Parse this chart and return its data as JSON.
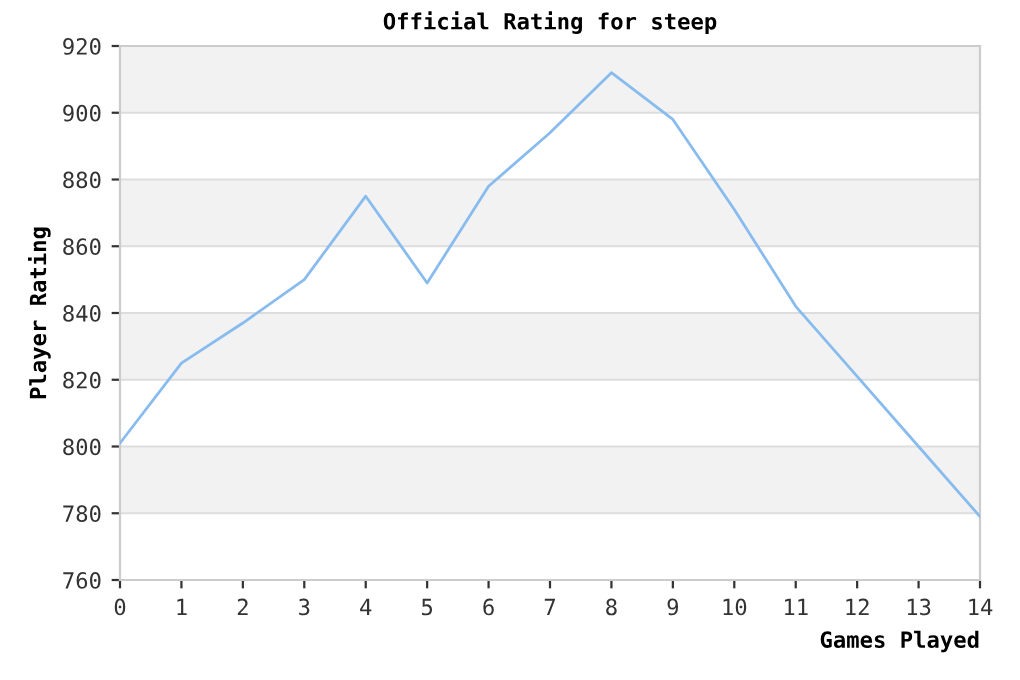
{
  "chart_data": {
    "type": "line",
    "title": "Official Rating for steep",
    "xlabel": "Games Played",
    "ylabel": "Player Rating",
    "x": [
      0,
      1,
      2,
      3,
      4,
      5,
      6,
      7,
      8,
      9,
      10,
      11,
      12,
      13,
      14
    ],
    "series": [
      {
        "color": "#88bbee",
        "values": [
          801,
          825,
          837,
          850,
          875,
          849,
          878,
          894,
          912,
          898,
          871,
          842,
          821,
          800,
          779
        ]
      }
    ],
    "xlim": [
      0,
      14
    ],
    "xticks": [
      0,
      1,
      2,
      3,
      4,
      5,
      6,
      7,
      8,
      9,
      10,
      11,
      12,
      13,
      14
    ],
    "ylim": [
      760,
      920
    ],
    "yticks": [
      760,
      780,
      800,
      820,
      840,
      860,
      880,
      900,
      920
    ],
    "grid": "y",
    "bands": [
      {
        "axis": "y",
        "from": 900,
        "to": 920,
        "color": "#f2f2f2"
      },
      {
        "axis": "y",
        "from": 860,
        "to": 880,
        "color": "#f2f2f2"
      },
      {
        "axis": "y",
        "from": 820,
        "to": 840,
        "color": "#f2f2f2"
      },
      {
        "axis": "y",
        "from": 780,
        "to": 800,
        "color": "#f2f2f2"
      }
    ]
  }
}
